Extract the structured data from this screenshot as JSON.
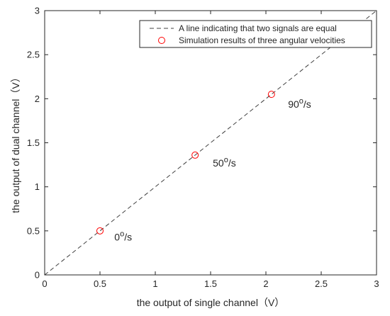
{
  "chart_data": {
    "type": "scatter",
    "xlabel": "the output of single channel（V）",
    "ylabel": "the output of dual channel（V）",
    "xlim": [
      0,
      3
    ],
    "ylim": [
      0,
      3
    ],
    "xticks": [
      "0",
      "0.5",
      "1",
      "1.5",
      "2",
      "2.5",
      "3"
    ],
    "yticks": [
      "0",
      "0.5",
      "1",
      "1.5",
      "2",
      "2.5",
      "3"
    ],
    "grid": false,
    "legend_position": "top-right",
    "series": [
      {
        "name": "A line indicating that two signals are equal",
        "kind": "line",
        "style": "dashed",
        "color": "#404040",
        "x": [
          0,
          3
        ],
        "y": [
          0,
          3
        ]
      },
      {
        "name": "Simulation results of three angular velocities",
        "kind": "scatter",
        "marker": "circle",
        "color": "#ff0000",
        "x": [
          0.5,
          1.36,
          2.05
        ],
        "y": [
          0.5,
          1.36,
          2.05
        ]
      }
    ],
    "annotations": [
      {
        "base": "0",
        "sup": "o",
        "tail": "/s",
        "x": 0.63,
        "y": 0.39
      },
      {
        "base": "50",
        "sup": "o",
        "tail": "/s",
        "x": 1.52,
        "y": 1.23
      },
      {
        "base": "90",
        "sup": "o",
        "tail": "/s",
        "x": 2.2,
        "y": 1.9
      }
    ]
  }
}
